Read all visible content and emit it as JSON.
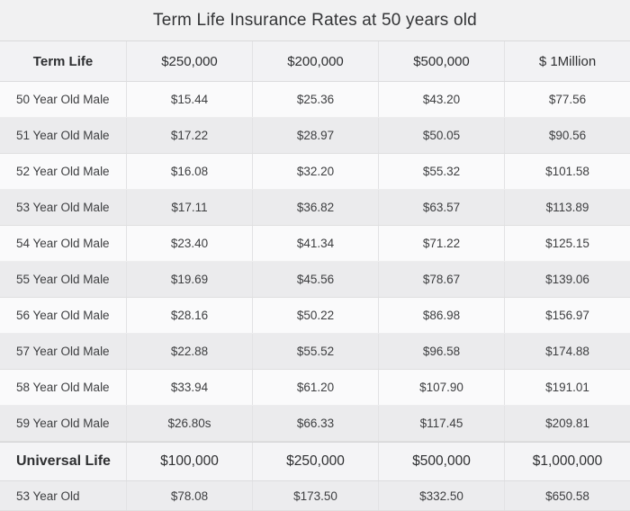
{
  "title": "Term Life Insurance Rates at 50 years old",
  "colors": {
    "page_bg": "#f1f1f2",
    "header_bg": "#f2f2f4",
    "row_light": "#fafafb",
    "row_dark": "#ebebed",
    "universal_bg": "#f4f4f6",
    "border": "#d9d9db",
    "text": "#3d3e40"
  },
  "table": {
    "header": {
      "label": "Term Life",
      "columns": [
        "$250,000",
        "$200,000",
        "$500,000",
        "$ 1Million"
      ]
    },
    "rows": [
      {
        "label": "50 Year Old Male",
        "values": [
          "$15.44",
          "$25.36",
          "$43.20",
          "$77.56"
        ]
      },
      {
        "label": "51 Year Old Male",
        "values": [
          "$17.22",
          "$28.97",
          "$50.05",
          "$90.56"
        ]
      },
      {
        "label": "52 Year Old Male",
        "values": [
          "$16.08",
          "$32.20",
          "$55.32",
          "$101.58"
        ]
      },
      {
        "label": "53 Year Old Male",
        "values": [
          "$17.11",
          "$36.82",
          "$63.57",
          "$113.89"
        ]
      },
      {
        "label": "54 Year Old Male",
        "values": [
          "$23.40",
          "$41.34",
          "$71.22",
          "$125.15"
        ]
      },
      {
        "label": "55 Year Old Male",
        "values": [
          "$19.69",
          "$45.56",
          "$78.67",
          "$139.06"
        ]
      },
      {
        "label": "56 Year Old Male",
        "values": [
          "$28.16",
          "$50.22",
          "$86.98",
          "$156.97"
        ]
      },
      {
        "label": "57 Year Old Male",
        "values": [
          "$22.88",
          "$55.52",
          "$96.58",
          "$174.88"
        ]
      },
      {
        "label": "58 Year Old Male",
        "values": [
          "$33.94",
          "$61.20",
          "$107.90",
          "$191.01"
        ]
      },
      {
        "label": "59 Year Old Male",
        "values": [
          "$26.80s",
          "$66.33",
          "$117.45",
          "$209.81"
        ]
      }
    ],
    "universal_header": {
      "label": "Universal Life",
      "columns": [
        "$100,000",
        "$250,000",
        "$500,000",
        "$1,000,000"
      ]
    },
    "universal_rows": [
      {
        "label": "53 Year Old",
        "values": [
          "$78.08",
          "$173.50",
          "$332.50",
          "$650.58"
        ]
      }
    ]
  },
  "chart_data": {
    "type": "table",
    "title": "Term Life Insurance Rates at 50 years old",
    "sections": [
      {
        "name": "Term Life",
        "columns": [
          "$250,000",
          "$200,000",
          "$500,000",
          "$ 1Million"
        ],
        "rows": [
          [
            "50 Year Old Male",
            "$15.44",
            "$25.36",
            "$43.20",
            "$77.56"
          ],
          [
            "51 Year Old Male",
            "$17.22",
            "$28.97",
            "$50.05",
            "$90.56"
          ],
          [
            "52 Year Old Male",
            "$16.08",
            "$32.20",
            "$55.32",
            "$101.58"
          ],
          [
            "53 Year Old Male",
            "$17.11",
            "$36.82",
            "$63.57",
            "$113.89"
          ],
          [
            "54 Year Old Male",
            "$23.40",
            "$41.34",
            "$71.22",
            "$125.15"
          ],
          [
            "55 Year Old Male",
            "$19.69",
            "$45.56",
            "$78.67",
            "$139.06"
          ],
          [
            "56 Year Old Male",
            "$28.16",
            "$50.22",
            "$86.98",
            "$156.97"
          ],
          [
            "57 Year Old Male",
            "$22.88",
            "$55.52",
            "$96.58",
            "$174.88"
          ],
          [
            "58 Year Old Male",
            "$33.94",
            "$61.20",
            "$107.90",
            "$191.01"
          ],
          [
            "59 Year Old Male",
            "$26.80s",
            "$66.33",
            "$117.45",
            "$209.81"
          ]
        ]
      },
      {
        "name": "Universal Life",
        "columns": [
          "$100,000",
          "$250,000",
          "$500,000",
          "$1,000,000"
        ],
        "rows": [
          [
            "53 Year Old",
            "$78.08",
            "$173.50",
            "$332.50",
            "$650.58"
          ]
        ]
      }
    ]
  }
}
